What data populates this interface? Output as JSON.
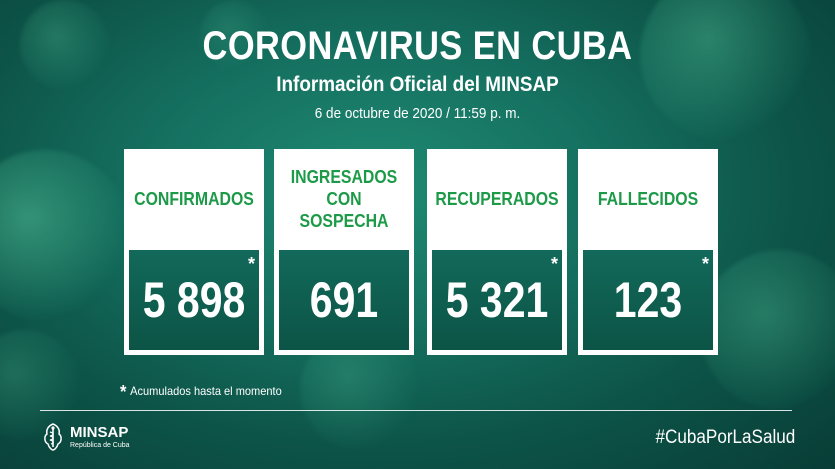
{
  "header": {
    "title": "CORONAVIRUS EN CUBA",
    "subtitle": "Información Oficial del MINSAP",
    "date": "6 de octubre de 2020 / 11:59 p. m."
  },
  "cards": [
    {
      "label": "CONFIRMADOS",
      "value": "5 898",
      "asterisk": "*"
    },
    {
      "label_line1": "INGRESADOS",
      "label_line2": "CON SOSPECHA",
      "value": "691"
    },
    {
      "label": "RECUPERADOS",
      "value": "5 321",
      "asterisk": "*"
    },
    {
      "label": "FALLECIDOS",
      "value": "123",
      "asterisk": "*"
    }
  ],
  "note": {
    "star": "*",
    "text": "Acumulados hasta el momento"
  },
  "footer": {
    "logo_name": "MINSAP",
    "logo_sub": "República de Cuba",
    "hashtag": "#CubaPorLaSalud"
  },
  "colors": {
    "background": "#0d5448",
    "label_green": "#1d9a48",
    "value_box": "#0f5f4f"
  },
  "icons": {
    "logo": "minsap-emblem-icon",
    "background": "virus-icon"
  }
}
